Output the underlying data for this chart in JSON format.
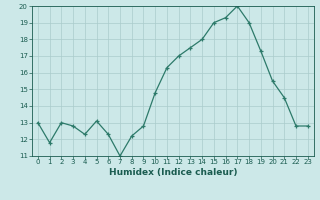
{
  "x": [
    0,
    1,
    2,
    3,
    4,
    5,
    6,
    7,
    8,
    9,
    10,
    11,
    12,
    13,
    14,
    15,
    16,
    17,
    18,
    19,
    20,
    21,
    22,
    23
  ],
  "y": [
    13.0,
    11.8,
    13.0,
    12.8,
    12.3,
    13.1,
    12.3,
    11.0,
    12.2,
    12.8,
    14.8,
    16.3,
    17.0,
    17.5,
    18.0,
    19.0,
    19.3,
    20.0,
    19.0,
    17.3,
    15.5,
    14.5,
    12.8,
    12.8
  ],
  "xlabel": "Humidex (Indice chaleur)",
  "ylabel": "",
  "ylim": [
    11,
    20
  ],
  "xlim_min": -0.5,
  "xlim_max": 23.5,
  "yticks": [
    11,
    12,
    13,
    14,
    15,
    16,
    17,
    18,
    19,
    20
  ],
  "xtick_labels": [
    "0",
    "1",
    "2",
    "3",
    "4",
    "5",
    "6",
    "7",
    "8",
    "9",
    "10",
    "11",
    "12",
    "13",
    "14",
    "15",
    "16",
    "17",
    "18",
    "19",
    "20",
    "21",
    "22",
    "23"
  ],
  "line_color": "#2d7a6a",
  "marker": "+",
  "markersize": 3,
  "linewidth": 0.9,
  "bg_color": "#cce8e8",
  "grid_color": "#aacccc",
  "label_color": "#1a5c50",
  "tick_color": "#1a5c50",
  "xlabel_fontsize": 6.5,
  "tick_fontsize": 5.0
}
